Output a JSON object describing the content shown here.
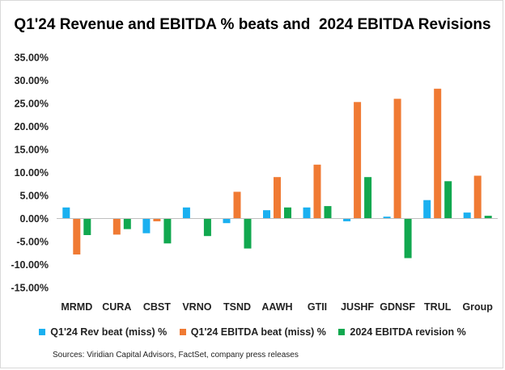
{
  "chart_data": {
    "type": "bar",
    "title": "Q1'24 Revenue and EBITDA % beats and  2024 EBITDA Revisions",
    "categories": [
      "MRMD",
      "CURA",
      "CBST",
      "VRNO",
      "TSND",
      "AAWH",
      "GTII",
      "JUSHF",
      "GDNSF",
      "TRUL",
      "Group"
    ],
    "series": [
      {
        "name": "Q1'24 Rev beat (miss) %",
        "color": "#1ab0f0",
        "values": [
          2.4,
          0.0,
          -3.2,
          2.4,
          -1.0,
          1.8,
          2.4,
          -0.6,
          0.4,
          4.0,
          1.3
        ]
      },
      {
        "name": "Q1'24 EBITDA beat (miss) %",
        "color": "#f07a33",
        "values": [
          -7.8,
          -3.5,
          -0.6,
          0.0,
          5.8,
          9.0,
          11.7,
          25.3,
          26.0,
          28.2,
          9.3
        ]
      },
      {
        "name": "2024 EBITDA revision %",
        "color": "#11a84f",
        "values": [
          -3.6,
          -2.3,
          -5.4,
          -3.8,
          -6.5,
          2.4,
          2.7,
          9.0,
          -8.6,
          8.1,
          0.6
        ]
      }
    ],
    "ylim": [
      -15,
      35
    ],
    "yticks": [
      "35.00%",
      "30.00%",
      "25.00%",
      "20.00%",
      "15.00%",
      "10.00%",
      "5.00%",
      "0.00%",
      "-5.00%",
      "-10.00%",
      "-15.00%"
    ],
    "xlabel": "",
    "ylabel": "",
    "legend_position": "bottom"
  },
  "source": "Sources: Viridian Capital Advisors, FactSet, company press releases"
}
